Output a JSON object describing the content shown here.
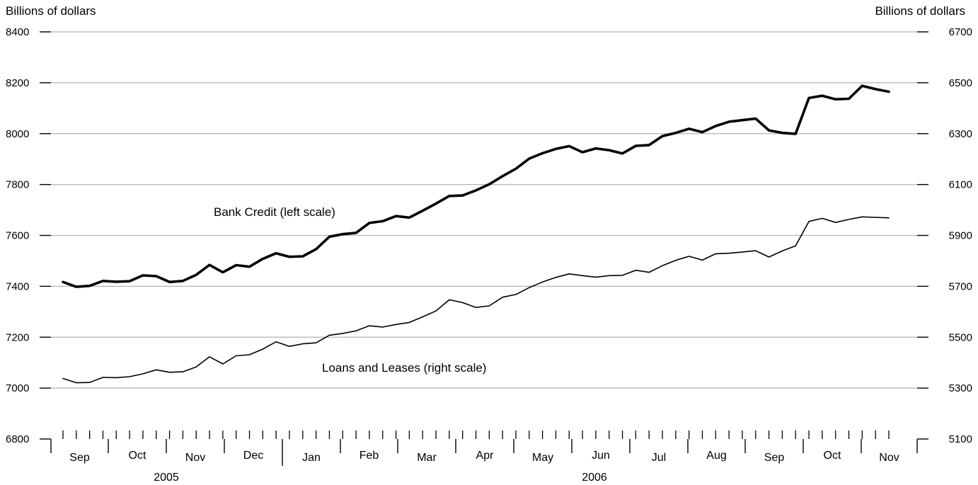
{
  "chart_data": {
    "type": "line",
    "left_axis_label": "Billions of dollars",
    "right_axis_label": "Billions of dollars",
    "left_ylim": [
      6800,
      8400
    ],
    "right_ylim": [
      5100,
      6700
    ],
    "left_ticks": [
      6800,
      7000,
      7200,
      7400,
      7600,
      7800,
      8000,
      8200,
      8400
    ],
    "right_ticks": [
      5100,
      5300,
      5500,
      5700,
      5900,
      6100,
      6300,
      6500,
      6700
    ],
    "grid": true,
    "month_labels": [
      "Sep",
      "Oct",
      "Nov",
      "Dec",
      "Jan",
      "Feb",
      "Mar",
      "Apr",
      "May",
      "Jun",
      "Jul",
      "Aug",
      "Sep",
      "Oct",
      "Nov"
    ],
    "year_labels": [
      "2005",
      "2006"
    ],
    "series": [
      {
        "name": "Bank Credit (left scale)",
        "axis": "left",
        "line_width": "thick",
        "values": [
          7417,
          7398,
          7402,
          7421,
          7418,
          7420,
          7443,
          7440,
          7417,
          7421,
          7445,
          7484,
          7455,
          7483,
          7477,
          7508,
          7530,
          7516,
          7518,
          7546,
          7595,
          7605,
          7610,
          7649,
          7656,
          7676,
          7670,
          7697,
          7725,
          7755,
          7757,
          7777,
          7801,
          7833,
          7862,
          7902,
          7923,
          7940,
          7951,
          7927,
          7942,
          7935,
          7922,
          7952,
          7955,
          7990,
          8003,
          8019,
          8006,
          8030,
          8047,
          8053,
          8059,
          8013,
          8003,
          7999,
          8140,
          8149,
          8135,
          8137,
          8188,
          8175,
          8165
        ]
      },
      {
        "name": "Loans and Leases (right scale)",
        "axis": "right",
        "line_width": "thin",
        "values": [
          5338,
          5321,
          5322,
          5342,
          5341,
          5345,
          5356,
          5372,
          5362,
          5364,
          5383,
          5423,
          5395,
          5427,
          5431,
          5453,
          5482,
          5464,
          5474,
          5478,
          5508,
          5515,
          5525,
          5545,
          5540,
          5550,
          5558,
          5580,
          5603,
          5647,
          5636,
          5617,
          5623,
          5657,
          5668,
          5695,
          5717,
          5735,
          5749,
          5742,
          5736,
          5742,
          5743,
          5763,
          5755,
          5781,
          5802,
          5818,
          5803,
          5828,
          5830,
          5835,
          5840,
          5815,
          5839,
          5859,
          5955,
          5967,
          5951,
          5963,
          5973,
          5971,
          5969
        ]
      }
    ]
  }
}
